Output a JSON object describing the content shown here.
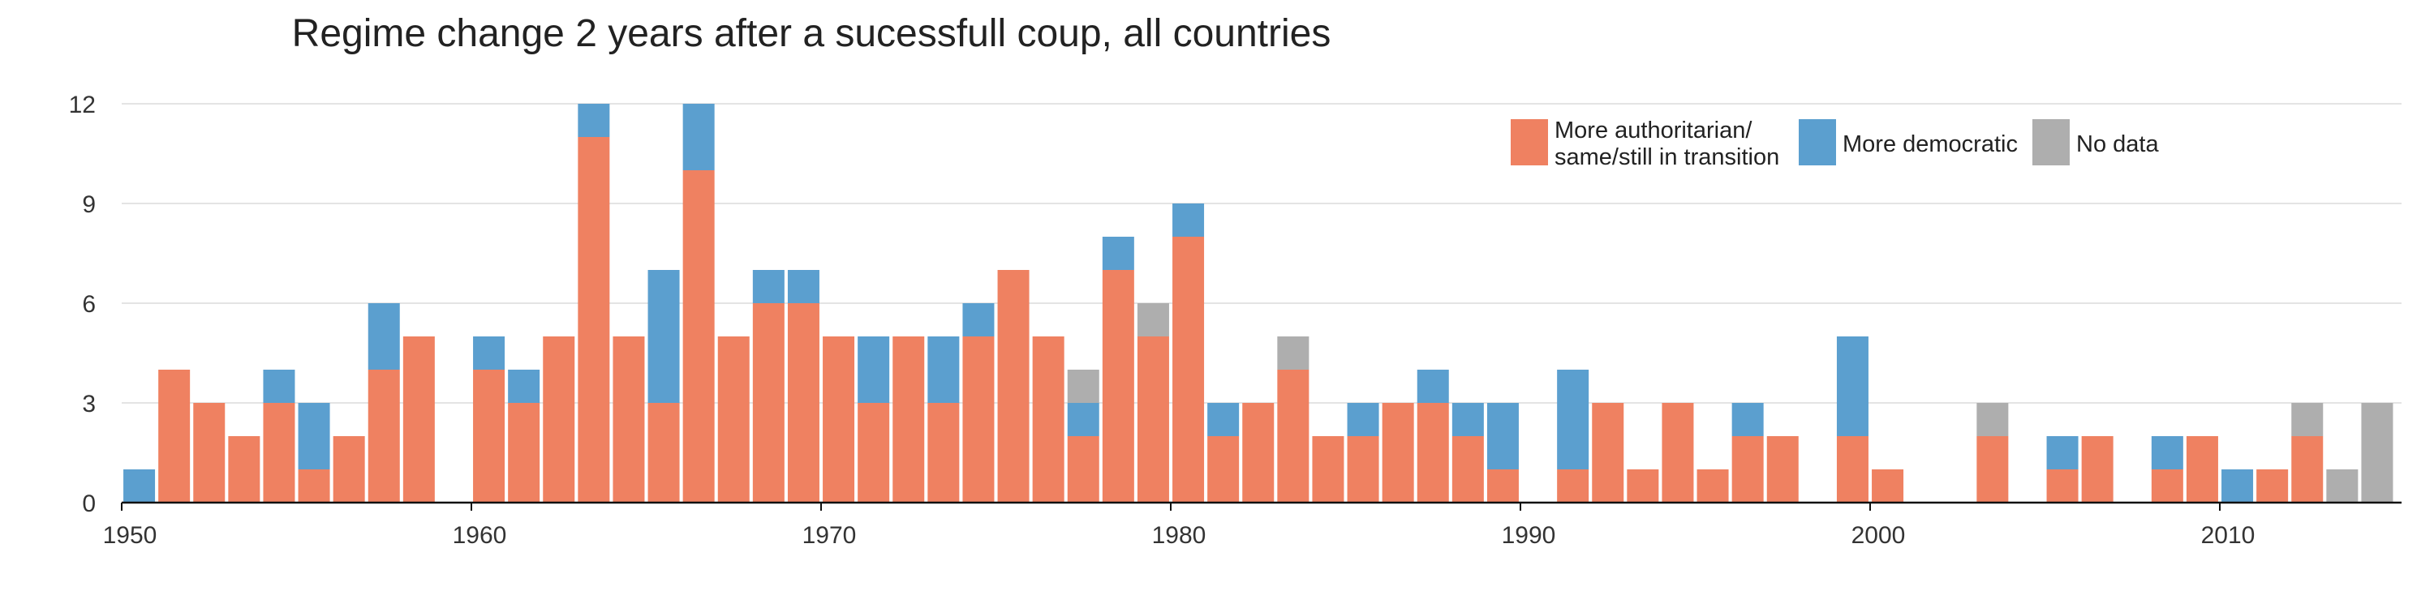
{
  "chart_data": {
    "type": "bar",
    "stacked": true,
    "title": "Regime change 2 years after a sucessfull coup, all countries",
    "xlabel": "",
    "ylabel": "",
    "xlim": [
      1950,
      2015
    ],
    "ylim": [
      0,
      12
    ],
    "y_ticks": [
      0,
      3,
      6,
      9,
      12
    ],
    "x_ticks": [
      1950,
      1960,
      1970,
      1980,
      1990,
      2000,
      2010
    ],
    "grid": true,
    "legend_position": "top-right",
    "years": [
      1950,
      1951,
      1952,
      1953,
      1954,
      1955,
      1956,
      1957,
      1958,
      1959,
      1960,
      1961,
      1962,
      1963,
      1964,
      1965,
      1966,
      1967,
      1968,
      1969,
      1970,
      1971,
      1972,
      1973,
      1974,
      1975,
      1976,
      1977,
      1978,
      1979,
      1980,
      1981,
      1982,
      1983,
      1984,
      1985,
      1986,
      1987,
      1988,
      1989,
      1990,
      1991,
      1992,
      1993,
      1994,
      1995,
      1996,
      1997,
      1998,
      1999,
      2000,
      2001,
      2002,
      2003,
      2004,
      2005,
      2006,
      2007,
      2008,
      2009,
      2010,
      2011,
      2012,
      2013,
      2014
    ],
    "series": [
      {
        "name": "More authoritarian/ same/still in transition",
        "legend_lines": [
          "More authoritarian/",
          "same/still in transition"
        ],
        "color": "#EF8161",
        "values": [
          0,
          4,
          3,
          2,
          3,
          1,
          2,
          4,
          5,
          0,
          4,
          3,
          5,
          11,
          5,
          3,
          10,
          5,
          6,
          6,
          5,
          3,
          5,
          3,
          5,
          7,
          5,
          2,
          7,
          5,
          8,
          2,
          3,
          4,
          2,
          2,
          3,
          3,
          2,
          1,
          0,
          1,
          3,
          1,
          3,
          1,
          2,
          2,
          0,
          2,
          1,
          0,
          0,
          2,
          0,
          1,
          2,
          0,
          1,
          2,
          0,
          1,
          2,
          0,
          0
        ]
      },
      {
        "name": "More democratic",
        "legend_lines": [
          "More democratic"
        ],
        "color": "#5B9FCF",
        "values": [
          1,
          0,
          0,
          0,
          1,
          2,
          0,
          2,
          0,
          0,
          1,
          1,
          0,
          1,
          0,
          4,
          2,
          0,
          1,
          1,
          0,
          2,
          0,
          2,
          1,
          0,
          0,
          1,
          1,
          0,
          1,
          1,
          0,
          0,
          0,
          1,
          0,
          1,
          1,
          2,
          0,
          3,
          0,
          0,
          0,
          0,
          1,
          0,
          0,
          3,
          0,
          0,
          0,
          0,
          0,
          1,
          0,
          0,
          1,
          0,
          1,
          0,
          0,
          0,
          0
        ]
      },
      {
        "name": "No data",
        "legend_lines": [
          "No data"
        ],
        "color": "#AEAEAE",
        "values": [
          0,
          0,
          0,
          0,
          0,
          0,
          0,
          0,
          0,
          0,
          0,
          0,
          0,
          0,
          0,
          0,
          0,
          0,
          0,
          0,
          0,
          0,
          0,
          0,
          0,
          0,
          0,
          1,
          0,
          1,
          0,
          0,
          0,
          1,
          0,
          0,
          0,
          0,
          0,
          0,
          0,
          0,
          0,
          0,
          0,
          0,
          0,
          0,
          0,
          0,
          0,
          0,
          0,
          1,
          0,
          0,
          0,
          0,
          0,
          0,
          0,
          0,
          1,
          1,
          3
        ]
      }
    ]
  }
}
